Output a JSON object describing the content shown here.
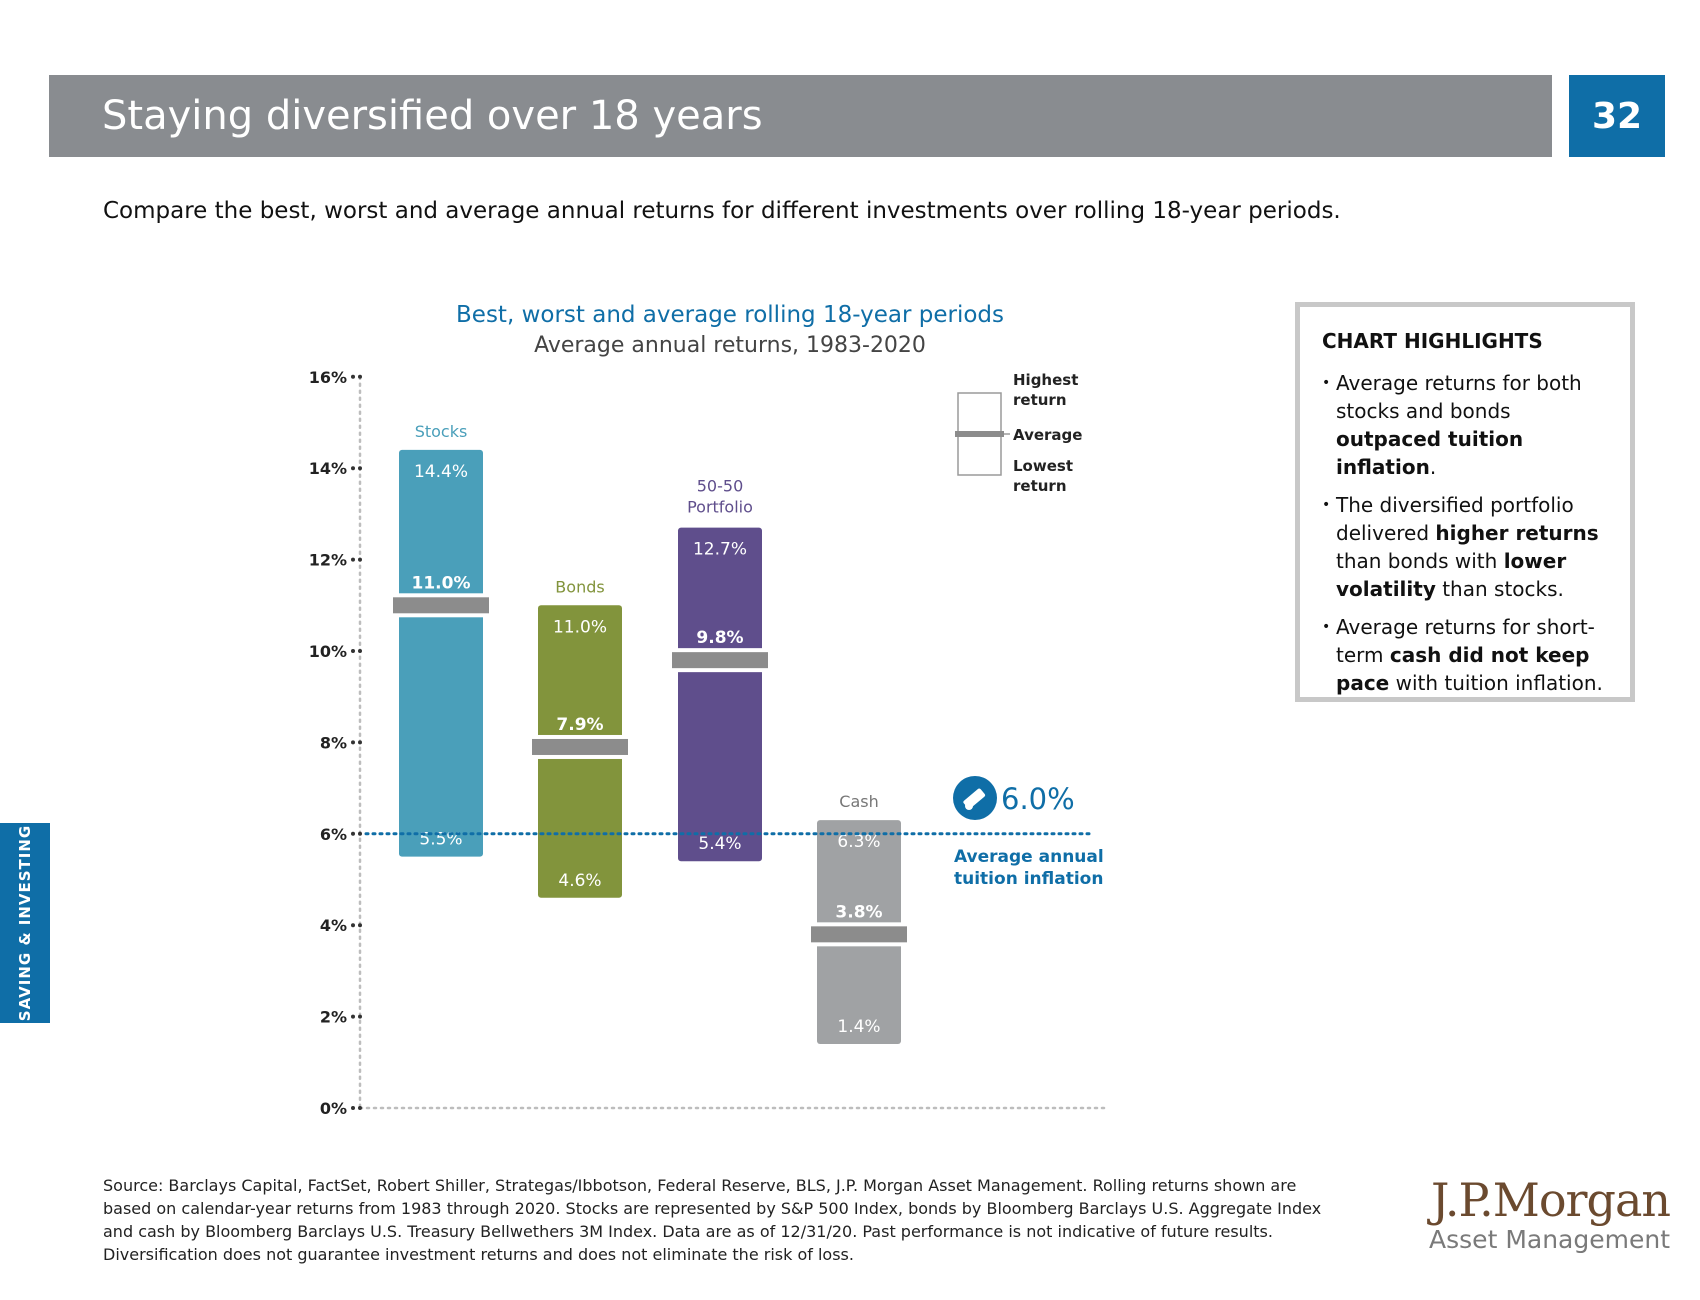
{
  "header": {
    "title": "Staying diversified over 18 years",
    "page_number": "32"
  },
  "intro": "Compare the best, worst and average annual returns for different investments over rolling 18-year periods.",
  "side_tab": "SAVING & INVESTING",
  "colors": {
    "stocks": "#4a9fba",
    "bonds": "#82943c",
    "portfolio": "#5f4e8c",
    "cash": "#a0a2a4",
    "avg_marker": "#8c8c8c",
    "inflation_line": "#0f6ea7",
    "title_bar": "#898c90",
    "accent": "#0f6ea7"
  },
  "chart_data": {
    "type": "bar",
    "title": "Best, worst and average rolling 18-year periods",
    "subtitle": "Average annual returns, 1983-2020",
    "y_ticks": [
      "0%",
      "2%",
      "4%",
      "6%",
      "8%",
      "10%",
      "12%",
      "14%",
      "16%"
    ],
    "ylim": [
      0,
      16
    ],
    "series": [
      {
        "name": "Stocks",
        "high": 14.4,
        "average": 11.0,
        "low": 5.5,
        "high_label": "14.4%",
        "average_label": "11.0%",
        "low_label": "5.5%"
      },
      {
        "name": "Bonds",
        "high": 11.0,
        "average": 7.9,
        "low": 4.6,
        "high_label": "11.0%",
        "average_label": "7.9%",
        "low_label": "4.6%"
      },
      {
        "name": "50-50 Portfolio",
        "name_line1": "50-50",
        "name_line2": "Portfolio",
        "high": 12.7,
        "average": 9.8,
        "low": 5.4,
        "high_label": "12.7%",
        "average_label": "9.8%",
        "low_label": "5.4%"
      },
      {
        "name": "Cash",
        "high": 6.3,
        "average": 3.8,
        "low": 1.4,
        "high_label": "6.3%",
        "average_label": "3.8%",
        "low_label": "1.4%"
      }
    ],
    "reference_line": {
      "value": 6.0,
      "value_label": "6.0%",
      "label_line1": "Average annual",
      "label_line2": "tuition inflation",
      "icon": "diploma-icon"
    },
    "legend": {
      "highest_line1": "Highest",
      "highest_line2": "return",
      "average": "Average",
      "lowest_line1": "Lowest",
      "lowest_line2": "return"
    }
  },
  "highlights": {
    "title": "CHART HIGHLIGHTS",
    "items": [
      {
        "pre": "Average returns for both stocks and bonds ",
        "bold": "outpaced tuition inflation",
        "post": "."
      },
      {
        "pre": "The diversified portfolio delivered ",
        "bold": "higher returns",
        "mid": " than bonds with ",
        "bold2": "lower volatility",
        "post": " than stocks."
      },
      {
        "pre": "Average returns for short-term ",
        "bold": "cash did not keep pace",
        "post": " with tuition inflation."
      }
    ]
  },
  "source": "Source: Barclays Capital, FactSet, Robert Shiller, Strategas/Ibbotson, Federal Reserve, BLS, J.P. Morgan Asset Management. Rolling returns shown are based on calendar-year returns from 1983 through 2020. Stocks are represented by S&P 500 Index, bonds by Bloomberg Barclays U.S. Aggregate Index and cash by Bloomberg Barclays U.S. Treasury Bellwethers 3M Index. Data are as of 12/31/20. Past performance is not indicative of future results. Diversification does not guarantee investment returns and does not eliminate the risk of loss.",
  "logo": {
    "name": "J.P.Morgan",
    "sub": "Asset Management"
  }
}
